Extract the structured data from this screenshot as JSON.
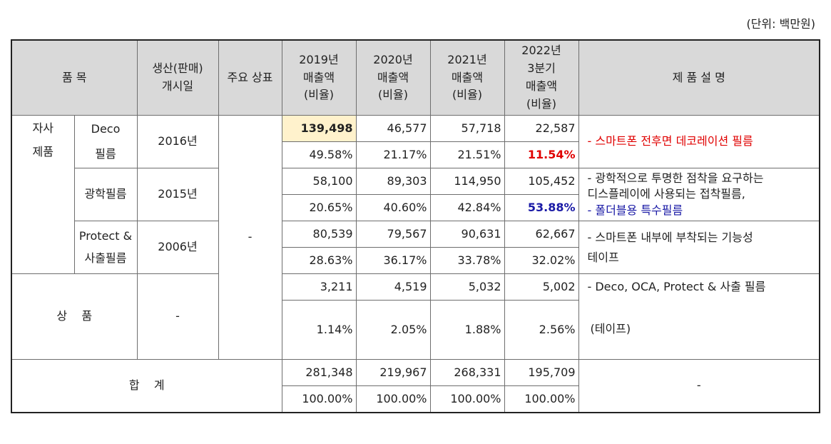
{
  "unit_label": "(단위: 백만원)",
  "header": {
    "item": "품 목",
    "start_date": "생산(판매)\n개시일",
    "trademark": "주요 상표",
    "y2019": [
      "2019년",
      "매출액",
      "(비율)"
    ],
    "y2020": [
      "2020년",
      "매출액",
      "(비율)"
    ],
    "y2021": [
      "2021년",
      "매출액",
      "(비율)"
    ],
    "y2022": [
      "2022년",
      "3분기",
      "매출액",
      "(비율)"
    ],
    "description": "제 품 설 명"
  },
  "own_products_label": [
    "자사",
    "제품"
  ],
  "trademark_value": "-",
  "rows": [
    {
      "name": [
        "Deco",
        "필름"
      ],
      "start": "2016년",
      "sales": [
        "139,498",
        "46,577",
        "57,718",
        "22,587"
      ],
      "ratio": [
        "49.58%",
        "21.17%",
        "21.51%",
        "11.54%"
      ],
      "desc": [
        "- 스마트폰 전후면 데코레이션 필름"
      ]
    },
    {
      "name": [
        "광학필름"
      ],
      "start": "2015년",
      "sales": [
        "58,100",
        "89,303",
        "114,950",
        "105,452"
      ],
      "ratio": [
        "20.65%",
        "40.60%",
        "42.84%",
        "53.88%"
      ],
      "desc": [
        "- 광학적으로 투명한 점착을 요구하는",
        "디스플레이에 사용되는 접착필름,",
        "- 폴더블용 특수필름"
      ]
    },
    {
      "name": [
        "Protect &",
        "사출필름"
      ],
      "start": "2006년",
      "sales": [
        "80,539",
        "79,567",
        "90,631",
        "62,667"
      ],
      "ratio": [
        "28.63%",
        "36.17%",
        "33.78%",
        "32.02%"
      ],
      "desc": [
        "- 스마트폰 내부에 부착되는 기능성",
        "테이프"
      ]
    }
  ],
  "goods": {
    "name": "상    품",
    "start": "-",
    "sales": [
      "3,211",
      "4,519",
      "5,032",
      "5,002"
    ],
    "ratio": [
      "1.14%",
      "2.05%",
      "1.88%",
      "2.56%"
    ],
    "desc": [
      "- Deco, OCA, Protect & 사출 필름",
      "(테이프)"
    ]
  },
  "total": {
    "name": "합    계",
    "sales": [
      "281,348",
      "219,967",
      "268,331",
      "195,709"
    ],
    "ratio": [
      "100.00%",
      "100.00%",
      "100.00%",
      "100.00%"
    ],
    "desc": "-"
  },
  "colors": {
    "header_bg": "#d9d9d9",
    "highlight_bg": "#fff2cc",
    "red": "#e00000",
    "blue": "#1a1aa6"
  }
}
